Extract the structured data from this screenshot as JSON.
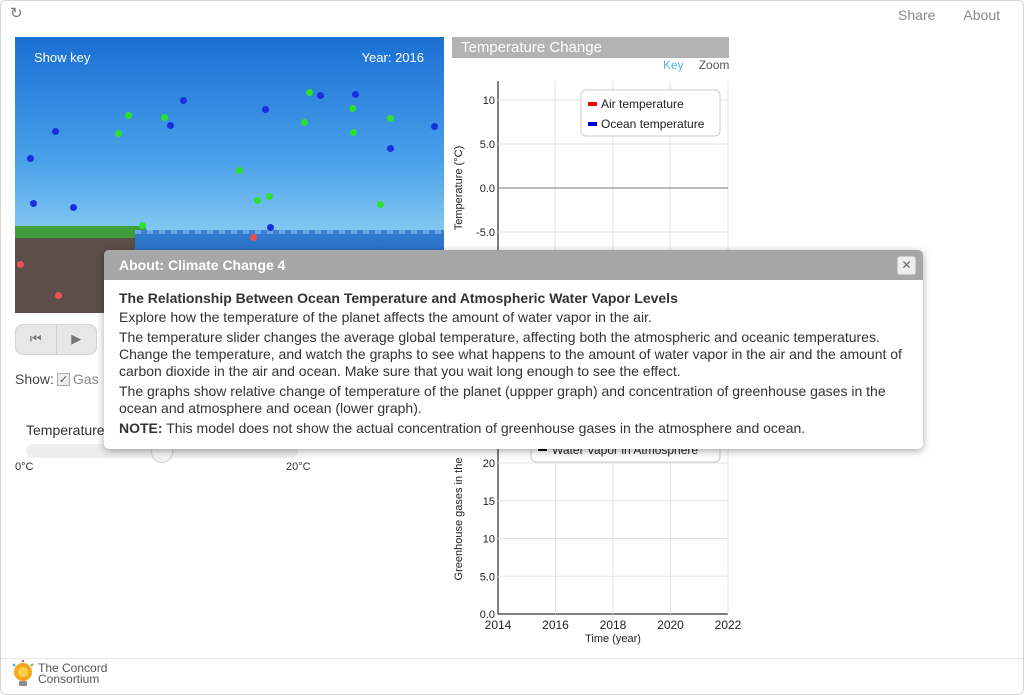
{
  "toolbar": {
    "reload_icon": "reload-icon",
    "share": "Share",
    "about": "About"
  },
  "simulation": {
    "show_key": "Show key",
    "year": "Year: 2016"
  },
  "controls": {
    "show_label": "Show:",
    "gases_label": "Gas",
    "gases_checked": true,
    "temperature_label": "Temperature",
    "slider_min": "0°C",
    "slider_max": "20°C",
    "slider_fraction": 0.5
  },
  "graph": {
    "title": "Temperature Change",
    "key_link": "Key",
    "zoom_link": "Zoom",
    "upper_ylabel": "Temperature (°C)",
    "lower_ylabel": "Greenhouse gases in the",
    "xlabel": "Time (year)",
    "upper_legend": [
      "Air temperature",
      "Ocean temperature"
    ],
    "lower_legend_partial": "Water Vapor in Atmosphere",
    "colors": {
      "air": "#ff0000",
      "ocean": "#0000dd",
      "vapor": "#000000"
    }
  },
  "chart_data": [
    {
      "type": "line",
      "title": "Temperature Change",
      "ylabel": "Temperature (°C)",
      "xlabel": "",
      "yticks": [
        "10",
        "5.0",
        "0.0",
        "-5.0"
      ],
      "ylim": [
        -10,
        12
      ],
      "series": [
        {
          "name": "Air temperature",
          "values": []
        },
        {
          "name": "Ocean temperature",
          "values": []
        }
      ],
      "grid": true,
      "legend": "top-right"
    },
    {
      "type": "line",
      "ylabel": "Greenhouse gases in the",
      "xlabel": "Time (year)",
      "xticks": [
        "2014",
        "2016",
        "2018",
        "2020",
        "2022"
      ],
      "xlim": [
        2014,
        2022
      ],
      "yticks": [
        "20",
        "15",
        "10",
        "5.0",
        "0.0"
      ],
      "ylim": [
        0,
        20
      ],
      "series": [
        {
          "name": "Water Vapor in Atmosphere",
          "values": []
        }
      ],
      "grid": true,
      "legend": "top-right"
    }
  ],
  "modal": {
    "title": "About: Climate Change 4",
    "close": "✕",
    "heading": "The Relationship Between Ocean Temperature and Atmospheric Water Vapor Levels",
    "p1": "Explore how the temperature of the planet affects the amount of water vapor in the air.",
    "p2": "The temperature slider changes the average global temperature, affecting both the atmospheric and oceanic temperatures. Change the temperature, and watch the graphs to see what happens to the amount of water vapor in the air and the amount of carbon dioxide in the air and ocean. Make sure that you wait long enough to see the effect.",
    "p3": "The graphs show relative change of temperature of the planet (uppper graph) and concentration of greenhouse gases in the ocean and atmosphere and ocean (lower graph).",
    "note_label": "NOTE:",
    "note_text": " This model does not show the actual concentration of greenhouse gases in the atmosphere and ocean."
  },
  "footer": {
    "logo_line1": "The Concord",
    "logo_line2": "Consortium"
  }
}
